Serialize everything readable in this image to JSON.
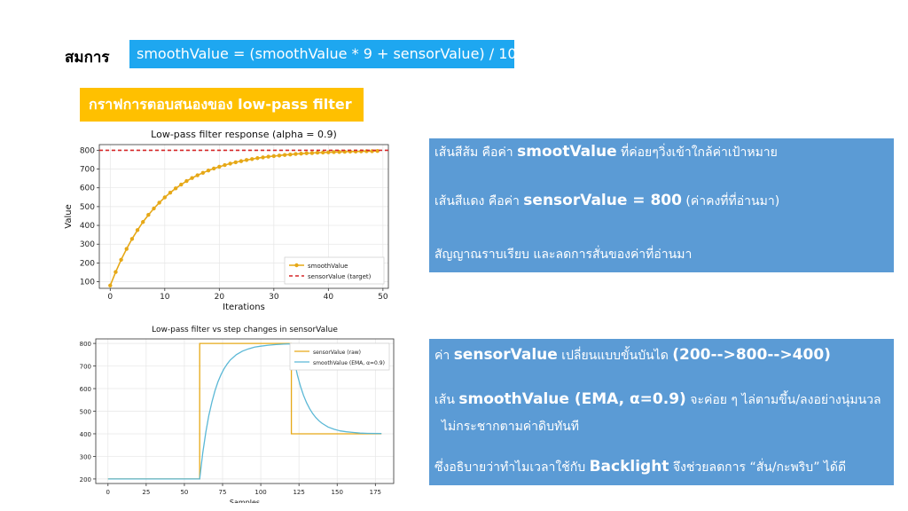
{
  "equation": {
    "label": "สมการ",
    "formula": "smoothValue = (smoothValue * 9 + sensorValue) / 10"
  },
  "section_title": {
    "prefix": "กราฟการตอบสนองของ",
    "suffix": "low-pass filter"
  },
  "info1": {
    "line1_a": "เส้นสีส้ม คือค่า ",
    "line1_b": "smootValue",
    "line1_c": " ที่ค่อยๆวิ่งเข้าใกล้ค่าเป้าหมาย",
    "line2_a": "เส้นสีแดง คือค่า ",
    "line2_b": "sensorValue = 800",
    "line2_c": " (ค่าคงที่ที่อ่านมา)",
    "line3": "สัญญาณราบเรียบ  และลดการสั่นของค่าที่อ่านมา"
  },
  "info2": {
    "line1_a": "ค่า ",
    "line1_b": "sensorValue",
    "line1_c": " เปลี่ยนแบบขั้นบันได ",
    "line1_d": "(200-->800-->400)",
    "line2_a": "เส้น ",
    "line2_b": "smoothValue (EMA, α=0.9)",
    "line2_c": " จะค่อย  ๆ ไล่ตามขึ้น/ลงอย่างนุ่มนวล",
    "line3": "ไม่กระชากตามค่าดิบทันที",
    "line4_a": "ซึ่งอธิบายว่าทำไมเวลาใช้กับ ",
    "line4_b": "Backlight",
    "line4_c": " จึงช่วยลดการ “สั่น/กะพริบ” ได้ดี"
  },
  "colors": {
    "equation_bg": "#1ea7f0",
    "section_title_bg": "#ffc000",
    "info_bg": "#5b9bd5",
    "smooth_orange": "#e6a817",
    "target_red": "#d62728",
    "raw_orange": "#e6a817",
    "ema_blue": "#5bb8d6"
  },
  "chart_data": [
    {
      "type": "line",
      "title": "Low-pass filter response (alpha = 0.9)",
      "xlabel": "Iterations",
      "ylabel": "Value",
      "xlim": [
        -2,
        51
      ],
      "ylim": [
        65,
        830
      ],
      "xticks": [
        0,
        10,
        20,
        30,
        40,
        50
      ],
      "yticks": [
        100,
        200,
        300,
        400,
        500,
        600,
        700,
        800
      ],
      "grid": true,
      "legend_position": "bottom-right",
      "series": [
        {
          "name": "smoothValue",
          "style": "line-with-markers",
          "x": [
            0,
            1,
            2,
            3,
            4,
            5,
            6,
            7,
            8,
            9,
            10,
            11,
            12,
            13,
            14,
            15,
            16,
            17,
            18,
            19,
            20,
            21,
            22,
            23,
            24,
            25,
            26,
            27,
            28,
            29,
            30,
            31,
            32,
            33,
            34,
            35,
            36,
            37,
            38,
            39,
            40,
            41,
            42,
            43,
            44,
            45,
            46,
            47,
            48,
            49
          ],
          "y": [
            80,
            152,
            217,
            275,
            328,
            375,
            418,
            456,
            490,
            521,
            549,
            574,
            597,
            617,
            636,
            652,
            667,
            680,
            692,
            703,
            712,
            721,
            729,
            736,
            742,
            748,
            753,
            758,
            762,
            766,
            769,
            772,
            775,
            777,
            780,
            782,
            784,
            785,
            787,
            788,
            789,
            790,
            791,
            792,
            793,
            793,
            794,
            795,
            795,
            796
          ]
        },
        {
          "name": "sensorValue (target)",
          "style": "dashed",
          "x": [
            -2,
            51
          ],
          "y": [
            800,
            800
          ]
        }
      ]
    },
    {
      "type": "line",
      "title": "Low-pass filter vs step changes in sensorValue",
      "xlabel": "Samples",
      "ylabel": "Value",
      "xlim": [
        -8,
        187
      ],
      "ylim": [
        180,
        820
      ],
      "xticks": [
        0,
        25,
        50,
        75,
        100,
        125,
        150,
        175
      ],
      "yticks": [
        200,
        300,
        400,
        500,
        600,
        700,
        800
      ],
      "grid": true,
      "legend_position": "top-right",
      "series": [
        {
          "name": "sensorValue (raw)",
          "x": [
            0,
            60,
            60,
            120,
            120,
            179
          ],
          "y": [
            200,
            200,
            800,
            800,
            400,
            400
          ]
        },
        {
          "name": "smoothValue (EMA, α=0.9)",
          "x": [
            0,
            60,
            62,
            64,
            66,
            68,
            70,
            72,
            74,
            76,
            78,
            80,
            84,
            88,
            92,
            96,
            100,
            105,
            110,
            115,
            120,
            122,
            124,
            126,
            128,
            130,
            132,
            134,
            136,
            138,
            140,
            144,
            148,
            152,
            156,
            160,
            165,
            170,
            179
          ],
          "y": [
            200,
            200,
            314,
            406,
            481,
            541,
            590,
            630,
            662,
            688,
            709,
            726,
            750,
            766,
            776,
            784,
            788,
            792,
            795,
            797,
            798,
            722,
            660,
            610,
            570,
            537,
            511,
            489,
            472,
            458,
            447,
            430,
            420,
            413,
            409,
            406,
            403,
            402,
            401
          ]
        }
      ]
    }
  ]
}
